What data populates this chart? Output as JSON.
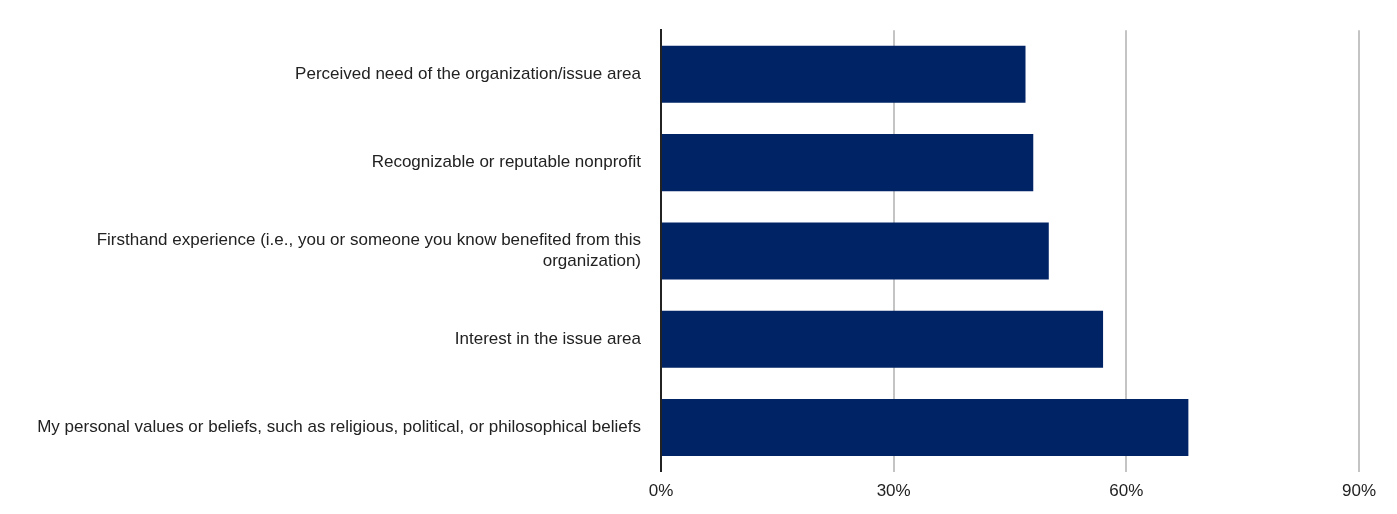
{
  "chart_data": {
    "type": "bar",
    "orientation": "horizontal",
    "categories": [
      "Perceived need of the organization/issue area",
      "Recognizable or reputable nonprofit",
      "Firsthand experience (i.e., you or someone you know benefited from this organization)",
      "Interest in the issue area",
      "My personal values or beliefs, such as religious, political, or philosophical beliefs"
    ],
    "values": [
      47,
      48,
      50,
      57,
      68
    ],
    "color": "#002366",
    "xlim": [
      0,
      90
    ],
    "xticks": [
      {
        "value": 0,
        "label": "0%"
      },
      {
        "value": 30,
        "label": "30%"
      },
      {
        "value": 60,
        "label": "60%"
      },
      {
        "value": 90,
        "label": "90%"
      }
    ],
    "grid": "x",
    "legend": false
  }
}
